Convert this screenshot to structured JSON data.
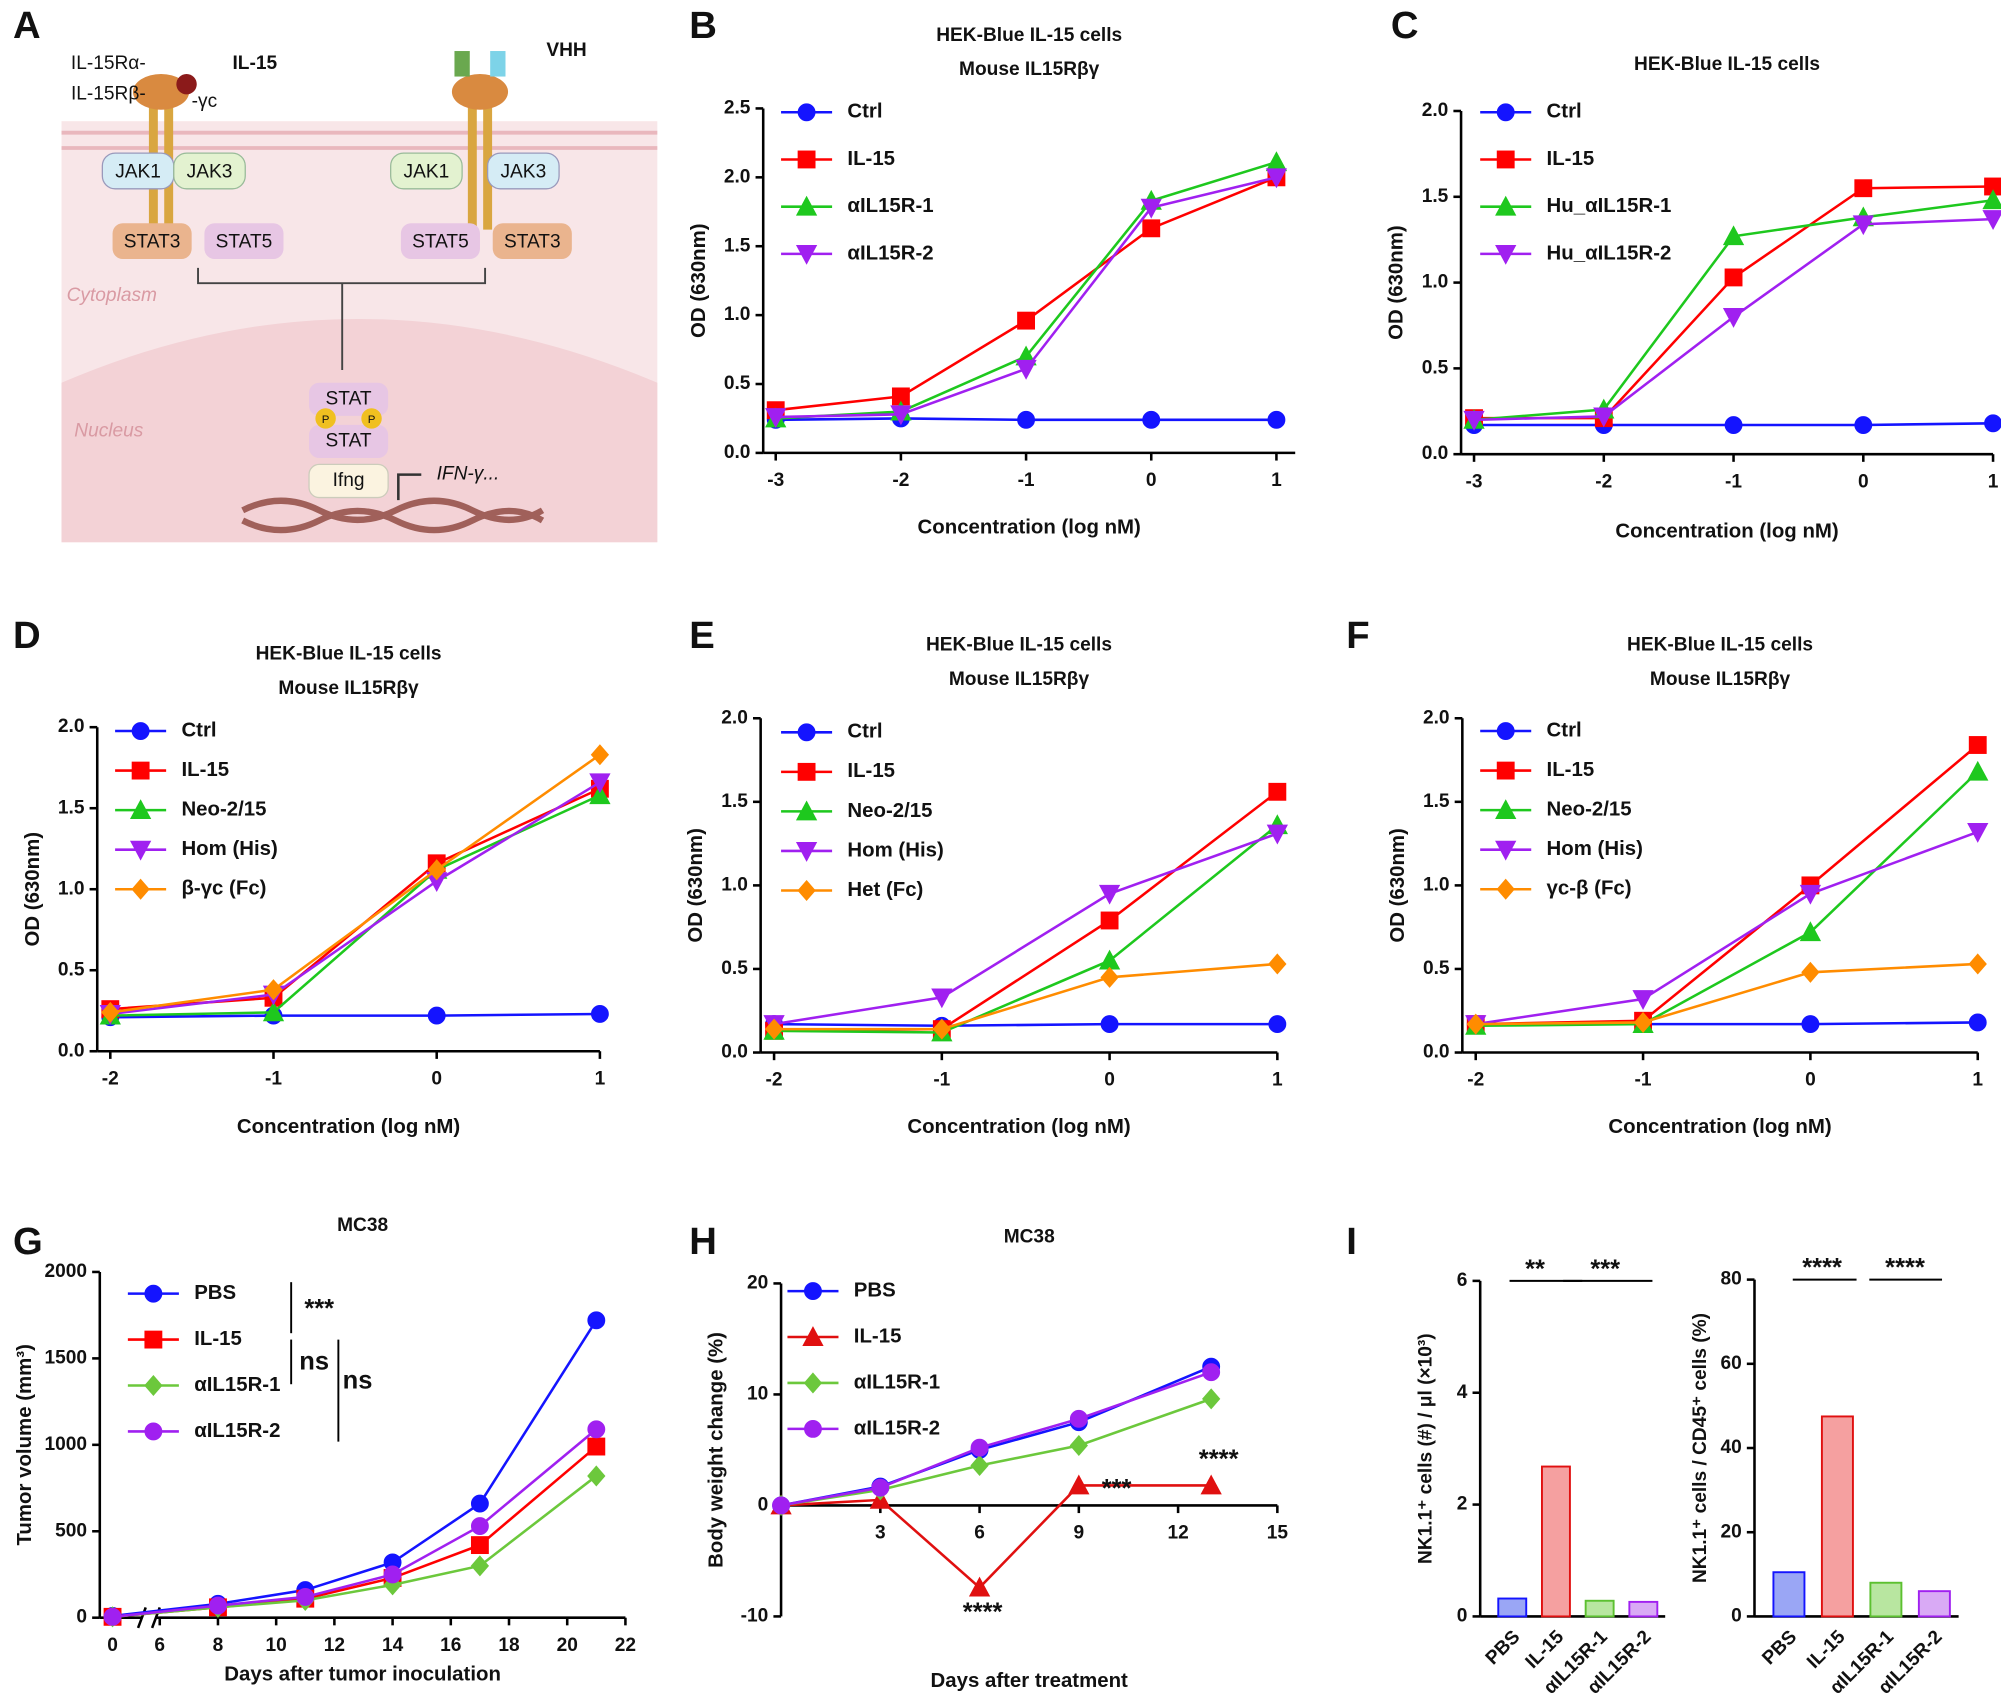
{
  "diagram": {
    "panel": "A",
    "il15ra": "IL-15Rα-",
    "il15": "IL-15",
    "il15rb": "IL-15Rβ-",
    "gc": "-γc",
    "vhh": "VHH",
    "jak1_left": "JAK1",
    "jak3_left": "JAK3",
    "jak1_right": "JAK1",
    "jak3_right": "JAK3",
    "stat3_left": "STAT3",
    "stat5_left": "STAT5",
    "stat5_right": "STAT5",
    "stat3_right": "STAT3",
    "cytoplasm": "Cytoplasm",
    "nucleus": "Nucleus",
    "stat_top": "STAT",
    "stat_bottom": "STAT",
    "p_left": "P",
    "p_right": "P",
    "ifng": "Ifng",
    "ifn": "IFN-γ..."
  },
  "chart_data": [
    {
      "panel": "B",
      "type": "line",
      "title": "HEK-Blue IL-15 cells",
      "subtitle": "Mouse IL15Rβγ",
      "x_label": "Concentration (log nM)",
      "y_label": "OD  (630nm)",
      "x": [
        -3,
        -2,
        -1,
        0,
        1
      ],
      "xlim": [
        -3.1,
        1.15
      ],
      "xticks": [
        -3,
        -2,
        -1,
        0,
        1
      ],
      "ylim": [
        0,
        2.5
      ],
      "yticks": [
        {
          "value": 0,
          "label": "0.0"
        },
        0.5,
        {
          "value": 1,
          "label": "1.0"
        },
        1.5,
        {
          "value": 2,
          "label": "2.0"
        },
        2.5
      ],
      "series": [
        {
          "name": "Ctrl",
          "color": "#1414ff",
          "marker": "circle",
          "values": [
            0.24,
            0.25,
            0.24,
            0.24,
            0.24
          ]
        },
        {
          "name": "IL-15",
          "color": "#ff0000",
          "marker": "square",
          "values": [
            0.31,
            0.41,
            0.96,
            1.63,
            2.0
          ]
        },
        {
          "name": "αIL15R-1",
          "color": "#1ec81e",
          "marker": "triangle-up",
          "values": [
            0.25,
            0.3,
            0.7,
            1.83,
            2.11
          ]
        },
        {
          "name": "αIL15R-2",
          "color": "#a020f0",
          "marker": "triangle-down",
          "values": [
            0.26,
            0.28,
            0.61,
            1.78,
            2.0
          ]
        }
      ]
    },
    {
      "panel": "C",
      "type": "line",
      "title": "HEK-Blue IL-15 cells",
      "x_label": "Concentration (log nM)",
      "y_label": "OD  (630nm)",
      "x": [
        -3,
        -2,
        -1,
        0,
        1
      ],
      "xlim": [
        -3.1,
        1
      ],
      "xticks": [
        -3,
        -2,
        -1,
        0,
        1
      ],
      "ylim": [
        0,
        2
      ],
      "yticks": [
        {
          "value": 0,
          "label": "0.0"
        },
        0.5,
        {
          "value": 1,
          "label": "1.0"
        },
        1.5,
        {
          "value": 2,
          "label": "2.0"
        }
      ],
      "series": [
        {
          "name": "Ctrl",
          "color": "#1414ff",
          "marker": "circle",
          "values": [
            0.17,
            0.17,
            0.17,
            0.17,
            0.18
          ]
        },
        {
          "name": "IL-15",
          "color": "#ff0000",
          "marker": "square",
          "values": [
            0.21,
            0.21,
            1.03,
            1.55,
            1.56
          ]
        },
        {
          "name": "Hu_αIL15R-1",
          "color": "#1ec81e",
          "marker": "triangle-up",
          "values": [
            0.2,
            0.26,
            1.27,
            1.38,
            1.48
          ]
        },
        {
          "name": "Hu_αIL15R-2",
          "color": "#a020f0",
          "marker": "triangle-down",
          "values": [
            0.2,
            0.22,
            0.8,
            1.34,
            1.37
          ]
        }
      ]
    },
    {
      "panel": "D",
      "type": "line",
      "title": "HEK-Blue IL-15 cells",
      "subtitle": "Mouse IL15Rβγ",
      "x_label": "Concentration (log nM)",
      "y_label": "OD (630nm)",
      "x": [
        -2,
        -1,
        0,
        1
      ],
      "xlim": [
        -2.08,
        1
      ],
      "xticks": [
        -2,
        -1,
        0,
        1
      ],
      "ylim": [
        0,
        2
      ],
      "yticks": [
        {
          "value": 0,
          "label": "0.0"
        },
        0.5,
        {
          "value": 1,
          "label": "1.0"
        },
        1.5,
        {
          "value": 2,
          "label": "2.0"
        }
      ],
      "series": [
        {
          "name": "Ctrl",
          "color": "#1414ff",
          "marker": "circle",
          "values": [
            0.21,
            0.22,
            0.22,
            0.23
          ]
        },
        {
          "name": "IL-15",
          "color": "#ff0000",
          "marker": "square",
          "values": [
            0.26,
            0.33,
            1.16,
            1.62
          ]
        },
        {
          "name": "Neo-2/15",
          "color": "#1ec81e",
          "marker": "triangle-up",
          "values": [
            0.22,
            0.24,
            1.12,
            1.58
          ]
        },
        {
          "name": "Hom (His)",
          "color": "#a020f0",
          "marker": "triangle-down",
          "values": [
            0.23,
            0.35,
            1.05,
            1.66
          ]
        },
        {
          "name": "β-γc (Fc)",
          "color": "#ff8c00",
          "marker": "diamond",
          "values": [
            0.24,
            0.38,
            1.12,
            1.83
          ]
        }
      ]
    },
    {
      "panel": "E",
      "type": "line",
      "title": "HEK-Blue IL-15 cells",
      "subtitle": "Mouse IL15Rβγ",
      "x_label": "Concentration (log nM)",
      "y_label": "OD (630nm)",
      "x": [
        -2,
        -1,
        0,
        1
      ],
      "xlim": [
        -2.08,
        1
      ],
      "xticks": [
        -2,
        -1,
        0,
        1
      ],
      "ylim": [
        0,
        2
      ],
      "yticks": [
        {
          "value": 0,
          "label": "0.0"
        },
        0.5,
        {
          "value": 1,
          "label": "1.0"
        },
        1.5,
        {
          "value": 2,
          "label": "2.0"
        }
      ],
      "series": [
        {
          "name": "Ctrl",
          "color": "#1414ff",
          "marker": "circle",
          "values": [
            0.17,
            0.16,
            0.17,
            0.17
          ]
        },
        {
          "name": "IL-15",
          "color": "#ff0000",
          "marker": "square",
          "values": [
            0.13,
            0.14,
            0.79,
            1.56
          ]
        },
        {
          "name": "Neo-2/15",
          "color": "#1ec81e",
          "marker": "triangle-up",
          "values": [
            0.13,
            0.12,
            0.55,
            1.36
          ]
        },
        {
          "name": "Hom (His)",
          "color": "#a020f0",
          "marker": "triangle-down",
          "values": [
            0.17,
            0.33,
            0.95,
            1.31
          ]
        },
        {
          "name": "Het (Fc)",
          "color": "#ff8c00",
          "marker": "diamond",
          "values": [
            0.14,
            0.14,
            0.45,
            0.53
          ]
        }
      ]
    },
    {
      "panel": "F",
      "type": "line",
      "title": "HEK-Blue IL-15 cells",
      "subtitle": "Mouse IL15Rβγ",
      "x_label": "Concentration (log nM)",
      "y_label": "OD (630nm)",
      "x": [
        -2,
        -1,
        0,
        1
      ],
      "xlim": [
        -2.08,
        1
      ],
      "xticks": [
        -2,
        -1,
        0,
        1
      ],
      "ylim": [
        0,
        2
      ],
      "yticks": [
        {
          "value": 0,
          "label": "0.0"
        },
        0.5,
        {
          "value": 1,
          "label": "1.0"
        },
        1.5,
        {
          "value": 2,
          "label": "2.0"
        }
      ],
      "series": [
        {
          "name": "Ctrl",
          "color": "#1414ff",
          "marker": "circle",
          "values": [
            0.17,
            0.17,
            0.17,
            0.18
          ]
        },
        {
          "name": "IL-15",
          "color": "#ff0000",
          "marker": "square",
          "values": [
            0.17,
            0.19,
            1.0,
            1.84
          ]
        },
        {
          "name": "Neo-2/15",
          "color": "#1ec81e",
          "marker": "triangle-up",
          "values": [
            0.16,
            0.17,
            0.72,
            1.68
          ]
        },
        {
          "name": "Hom (His)",
          "color": "#a020f0",
          "marker": "triangle-down",
          "values": [
            0.17,
            0.32,
            0.95,
            1.32
          ]
        },
        {
          "name": "γc-β (Fc)",
          "color": "#ff8c00",
          "marker": "diamond",
          "values": [
            0.17,
            0.18,
            0.48,
            0.53
          ]
        }
      ]
    },
    {
      "panel": "G",
      "type": "line",
      "title": "MC38",
      "x_label": "Days after tumor inoculation",
      "y_label": "Tumor volume (mm³)",
      "axis_break": true,
      "x": [
        0,
        8,
        11,
        14,
        17,
        21
      ],
      "xlim": [
        0,
        22
      ],
      "xticks": [
        0,
        6,
        8,
        10,
        12,
        14,
        16,
        18,
        20,
        22
      ],
      "ylim": [
        0,
        2000
      ],
      "yticks": [
        0,
        500,
        1000,
        1500,
        2000
      ],
      "series": [
        {
          "name": "PBS",
          "color": "#1414ff",
          "marker": "circle",
          "values": [
            10,
            80,
            160,
            320,
            660,
            1720
          ]
        },
        {
          "name": "IL-15",
          "color": "#ff0000",
          "marker": "square",
          "values": [
            5,
            60,
            110,
            230,
            420,
            990
          ]
        },
        {
          "name": "αIL15R-1",
          "color": "#6cc83c",
          "marker": "diamond",
          "values": [
            5,
            60,
            100,
            190,
            300,
            820
          ]
        },
        {
          "name": "αIL15R-2",
          "color": "#a020f0",
          "marker": "circle",
          "values": [
            5,
            70,
            120,
            250,
            530,
            1090
          ]
        }
      ],
      "annotations": [
        "***",
        "ns",
        "ns"
      ]
    },
    {
      "panel": "H",
      "type": "line",
      "title": "MC38",
      "x_label": "Days after treatment",
      "y_label": "Body weight change (%)",
      "x": [
        0,
        3,
        6,
        9,
        13
      ],
      "xlim": [
        0,
        15
      ],
      "xticks": [
        3,
        6,
        9,
        12,
        15
      ],
      "ylim": [
        -10,
        20
      ],
      "yticks": [
        -10,
        0,
        10,
        20
      ],
      "series": [
        {
          "name": "PBS",
          "color": "#1414ff",
          "marker": "circle",
          "values": [
            0,
            1.7,
            5,
            7.5,
            12.5
          ]
        },
        {
          "name": "IL-15",
          "color": "#e01010",
          "marker": "triangle-up",
          "values": [
            0,
            0.5,
            -7.4,
            1.8,
            1.8
          ]
        },
        {
          "name": "αIL15R-1",
          "color": "#6cc83c",
          "marker": "diamond",
          "values": [
            0,
            1.4,
            3.6,
            5.4,
            9.6
          ]
        },
        {
          "name": "αIL15R-2",
          "color": "#a020f0",
          "marker": "circle",
          "values": [
            0,
            1.6,
            5.2,
            7.8,
            12
          ]
        }
      ],
      "annotations": [
        "****",
        "***",
        "****"
      ]
    },
    {
      "panel": "I",
      "type": "bar",
      "y_label": "NK1.1⁺ cells (#) / μl (×10³)",
      "categories": [
        "PBS",
        "IL-15",
        "αIL15R-1",
        "αIL15R-2"
      ],
      "values": [
        0.32,
        2.68,
        0.28,
        0.26
      ],
      "colors": [
        "#9aa6f5",
        "#f5a0a0",
        "#b8e6a0",
        "#d9aaf5"
      ],
      "edge_colors": [
        "#1414ff",
        "#e01010",
        "#5cc030",
        "#a020f0"
      ],
      "ylim": [
        0,
        6
      ],
      "yticks": [
        0,
        2,
        4,
        6
      ],
      "annotations": [
        "**",
        "***"
      ]
    },
    {
      "type": "bar",
      "y_label": "NK1.1⁺ cells / CD45⁺ cells (%)",
      "categories": [
        "PBS",
        "IL-15",
        "αIL15R-1",
        "αIL15R-2"
      ],
      "values": [
        10.5,
        47.5,
        8,
        6
      ],
      "colors": [
        "#9aa6f5",
        "#f5a0a0",
        "#b8e6a0",
        "#d9aaf5"
      ],
      "edge_colors": [
        "#1414ff",
        "#e01010",
        "#5cc030",
        "#a020f0"
      ],
      "ylim": [
        0,
        80
      ],
      "yticks": [
        0,
        20,
        40,
        60,
        80
      ],
      "annotations": [
        "****",
        "****"
      ]
    }
  ]
}
